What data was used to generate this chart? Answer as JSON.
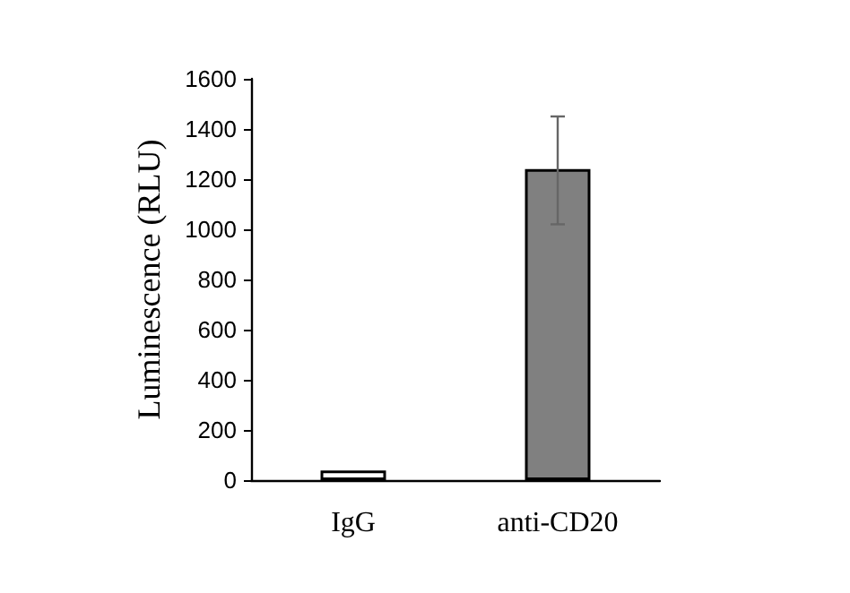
{
  "chart_data": {
    "type": "bar",
    "ylabel": "Luminescence (RLU)",
    "categories": [
      "IgG",
      "anti-CD20"
    ],
    "values": [
      38,
      1240
    ],
    "colors": [
      "#ffffff",
      "#808080"
    ],
    "errors": [
      null,
      [
        1020,
        1450
      ]
    ],
    "ylim": [
      0,
      1600
    ],
    "yticks": [
      0,
      200,
      400,
      600,
      800,
      1000,
      1200,
      1400,
      1600
    ],
    "grid": false
  }
}
